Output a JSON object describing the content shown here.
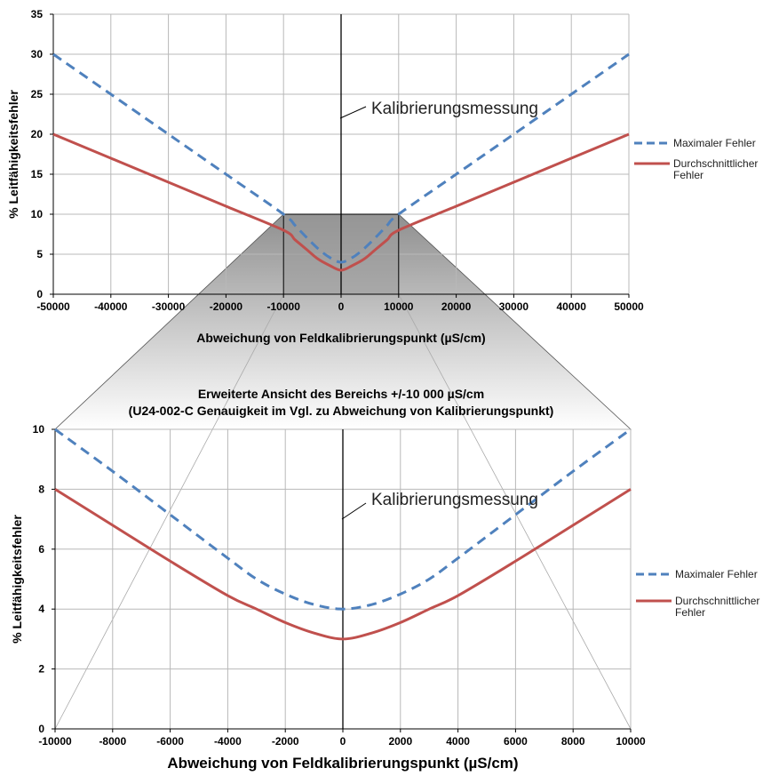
{
  "colors": {
    "max_series": "#4f81bd",
    "avg_series": "#c0504d",
    "grid": "#b8b8b8",
    "zoom_fill_top": "#8f8f8f",
    "zoom_fill_bottom": "#ffffff"
  },
  "chart_data": [
    {
      "type": "line",
      "title": "",
      "xlabel": "Abweichung von Feldkalibrierungspunkt (µS/cm)",
      "ylabel": "% Leitfähigkeitsfehler",
      "xlim": [
        -50000,
        50000
      ],
      "ylim": [
        0,
        35
      ],
      "x_ticks": [
        -50000,
        -40000,
        -30000,
        -20000,
        -10000,
        0,
        10000,
        20000,
        30000,
        40000,
        50000
      ],
      "y_ticks": [
        0,
        5,
        10,
        15,
        20,
        25,
        30,
        35
      ],
      "grid": true,
      "legend_position": "right",
      "annotation": "Kalibrierungsmessung",
      "series": [
        {
          "name": "Maximaler Fehler",
          "style": "dashed",
          "color": "#4f81bd",
          "x": [
            -50000,
            -40000,
            -30000,
            -20000,
            -10000,
            -8000,
            -6000,
            -4000,
            -2000,
            0,
            2000,
            4000,
            6000,
            8000,
            10000,
            20000,
            30000,
            40000,
            50000
          ],
          "y": [
            30,
            25,
            20,
            15,
            10,
            8.6,
            7.1,
            5.7,
            4.6,
            4,
            4.6,
            5.7,
            7.1,
            8.6,
            10,
            15,
            20,
            25,
            30
          ]
        },
        {
          "name": "Durchschnittlicher Fehler",
          "style": "solid",
          "color": "#c0504d",
          "x": [
            -50000,
            -40000,
            -30000,
            -20000,
            -10000,
            -8000,
            -6000,
            -4000,
            -2000,
            0,
            2000,
            4000,
            6000,
            8000,
            10000,
            20000,
            30000,
            40000,
            50000
          ],
          "y": [
            20,
            17,
            14,
            11,
            8,
            6.8,
            5.6,
            4.4,
            3.6,
            3,
            3.6,
            4.4,
            5.6,
            6.8,
            8,
            11,
            14,
            17,
            20
          ]
        }
      ]
    },
    {
      "type": "line",
      "title": "Erweiterte Ansicht des Bereichs +/-10 000 µS/cm",
      "subtitle": "(U24-002-C Genauigkeit im Vgl. zu Abweichung von Kalibrierungspunkt)",
      "xlabel": "Abweichung von Feldkalibrierungspunkt (µS/cm)",
      "ylabel": "% Leitfähigkeitsfehler",
      "xlim": [
        -10000,
        10000
      ],
      "ylim": [
        0,
        10
      ],
      "x_ticks": [
        -10000,
        -8000,
        -6000,
        -4000,
        -2000,
        0,
        2000,
        4000,
        6000,
        8000,
        10000
      ],
      "y_ticks": [
        0,
        2,
        4,
        6,
        8,
        10
      ],
      "grid": true,
      "legend_position": "right",
      "annotation": "Kalibrierungsmessung",
      "series": [
        {
          "name": "Maximaler Fehler",
          "style": "dashed",
          "color": "#4f81bd",
          "x": [
            -10000,
            -8000,
            -6000,
            -4000,
            -3000,
            -2000,
            -1000,
            0,
            1000,
            2000,
            3000,
            4000,
            6000,
            8000,
            10000
          ],
          "y": [
            10,
            8.6,
            7.15,
            5.7,
            5.0,
            4.5,
            4.15,
            4.0,
            4.15,
            4.5,
            5.0,
            5.7,
            7.15,
            8.6,
            10
          ]
        },
        {
          "name": "Durchschnittlicher Fehler",
          "style": "solid",
          "color": "#c0504d",
          "x": [
            -10000,
            -8000,
            -6000,
            -4000,
            -3000,
            -2000,
            -1000,
            0,
            1000,
            2000,
            3000,
            4000,
            6000,
            8000,
            10000
          ],
          "y": [
            8,
            6.8,
            5.6,
            4.45,
            4.0,
            3.55,
            3.2,
            3.0,
            3.2,
            3.55,
            4.0,
            4.45,
            5.6,
            6.8,
            8
          ]
        }
      ]
    }
  ],
  "legend_labels": {
    "max": "Maximaler Fehler",
    "avg_line1": "Durchschnittlicher",
    "avg_line2": "Fehler"
  }
}
